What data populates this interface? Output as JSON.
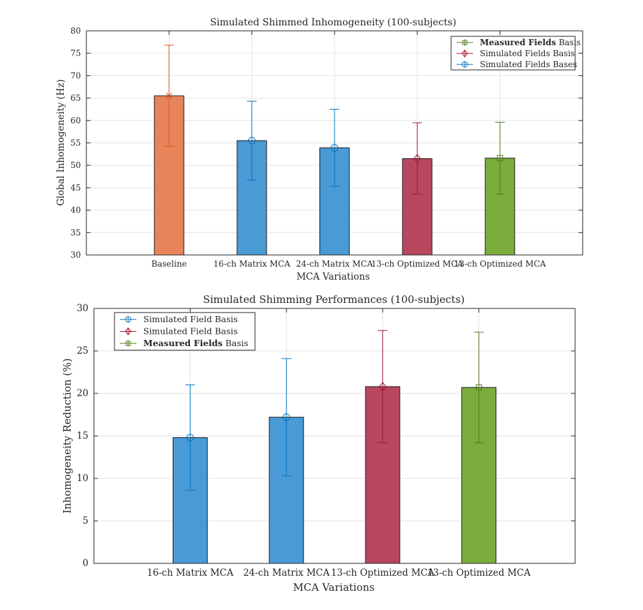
{
  "chart_data": [
    {
      "type": "bar",
      "title": "Simulated Shimmed Inhomogeneity (100-subjects)",
      "xlabel": "MCA Variations",
      "ylabel": "Global Inhomogeneity (Hz)",
      "ylim": [
        30,
        80
      ],
      "yticks": [
        30,
        35,
        40,
        45,
        50,
        55,
        60,
        65,
        70,
        75,
        80
      ],
      "grid": true,
      "legend_position": "top-right",
      "legend": [
        {
          "label_bold": "Measured Fields",
          "label_rest": " Basis",
          "color": "#4e7a1a",
          "marker": "square"
        },
        {
          "label_bold": "",
          "label_rest": "Simulated Fields Basis",
          "color": "#a2142f",
          "marker": "diamond"
        },
        {
          "label_bold": "",
          "label_rest": "Simulated Fields Bases",
          "color": "#0072bd",
          "marker": "circle"
        }
      ],
      "categories": [
        "Baseline",
        "16-ch Matrix MCA",
        "24-ch Matrix MCA",
        "13-ch Optimized MCA",
        "13-ch Optimized MCA"
      ],
      "values": [
        65.5,
        55.5,
        53.9,
        51.5,
        51.6
      ],
      "err_low": [
        54.2,
        46.7,
        45.3,
        43.6,
        43.6
      ],
      "err_high": [
        76.8,
        64.3,
        62.5,
        59.5,
        59.6
      ],
      "bar_colors": [
        "#e8845a",
        "#4a9ad6",
        "#4a9ad6",
        "#b8475e",
        "#7bad3c"
      ],
      "err_colors": [
        "#d95319",
        "#0072bd",
        "#0072bd",
        "#a2142f",
        "#4e7a1a"
      ],
      "markers": [
        "x",
        "circle",
        "circle",
        "diamond",
        "square"
      ]
    },
    {
      "type": "bar",
      "title": "Simulated Shimming Performances (100-subjects)",
      "xlabel": "MCA Variations",
      "ylabel": "Inhomogeneity Reduction (%)",
      "ylim": [
        0,
        30
      ],
      "yticks": [
        0,
        5,
        10,
        15,
        20,
        25,
        30
      ],
      "grid": true,
      "legend_position": "top-left",
      "legend": [
        {
          "label_bold": "",
          "label_rest": "Simulated Field Basis",
          "color": "#0072bd",
          "marker": "circle"
        },
        {
          "label_bold": "",
          "label_rest": "Simulated Field Basis",
          "color": "#a2142f",
          "marker": "diamond"
        },
        {
          "label_bold": "Measured Fields",
          "label_rest": " Basis",
          "color": "#4e7a1a",
          "marker": "square"
        }
      ],
      "categories": [
        "16-ch Matrix MCA",
        "24-ch Matrix MCA",
        "13-ch Optimized MCA",
        "13-ch Optimized MCA"
      ],
      "values": [
        14.8,
        17.2,
        20.8,
        20.7
      ],
      "err_low": [
        8.6,
        10.3,
        14.2,
        14.2
      ],
      "err_high": [
        21.0,
        24.1,
        27.4,
        27.2
      ],
      "bar_colors": [
        "#4a9ad6",
        "#4a9ad6",
        "#b8475e",
        "#7bad3c"
      ],
      "err_colors": [
        "#0072bd",
        "#0072bd",
        "#a2142f",
        "#4e7a1a"
      ],
      "markers": [
        "circle",
        "circle",
        "diamond",
        "square"
      ]
    }
  ]
}
